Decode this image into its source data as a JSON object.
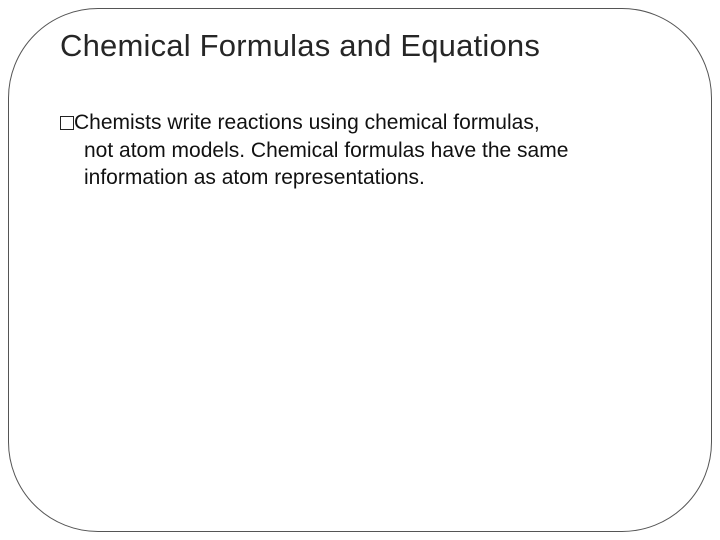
{
  "slide": {
    "title": "Chemical Formulas and Equations",
    "body_line1": "Chemists write reactions using chemical formulas,",
    "body_line2": "not atom models. Chemical formulas have the same information as atom representations."
  },
  "styling": {
    "title_fontsize": 31,
    "title_color": "#262626",
    "body_fontsize": 21,
    "body_color": "#111111",
    "frame_border_color": "#555555",
    "frame_border_radius": 90,
    "background_color": "#ffffff",
    "bullet_style": "hollow-square",
    "font_family": "Arial"
  }
}
